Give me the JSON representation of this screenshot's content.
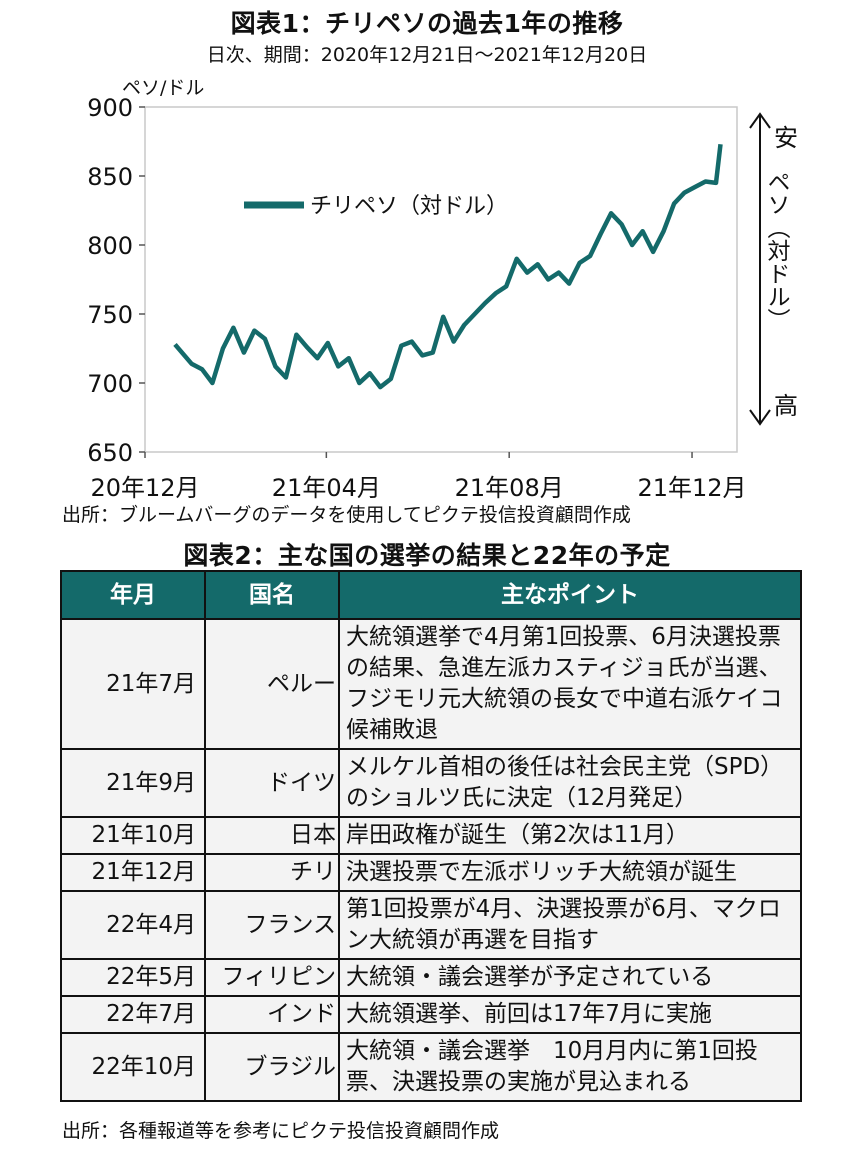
{
  "figure1": {
    "title": "図表1：チリペソの過去1年の推移",
    "subtitle": "日次、期間：2020年12月21日～2021年12月20日",
    "source": "出所：ブルームバーグのデータを使用してピクテ投信投資顧問作成"
  },
  "chart_data": {
    "type": "line",
    "ylabel": "ペソ/ドル",
    "ylim": [
      650,
      900
    ],
    "yticks": [
      "900",
      "850",
      "800",
      "750",
      "700",
      "650"
    ],
    "xticks": [
      "20年12月",
      "21年04月",
      "21年08月",
      "21年12月"
    ],
    "right_axis": {
      "top": "安",
      "middle": "ペソ（対ドル）",
      "bottom": "高"
    },
    "legend_position": "upper-left",
    "line_color": "#146a6a",
    "series": [
      {
        "name": "チリペソ（対ドル）",
        "x": [
          "2020-12-21",
          "2021-01-01",
          "2021-01-08",
          "2021-01-15",
          "2021-01-22",
          "2021-01-29",
          "2021-02-05",
          "2021-02-12",
          "2021-02-19",
          "2021-02-26",
          "2021-03-05",
          "2021-03-12",
          "2021-03-19",
          "2021-03-26",
          "2021-04-02",
          "2021-04-09",
          "2021-04-16",
          "2021-04-23",
          "2021-04-30",
          "2021-05-07",
          "2021-05-14",
          "2021-05-21",
          "2021-05-28",
          "2021-06-04",
          "2021-06-11",
          "2021-06-18",
          "2021-06-25",
          "2021-07-02",
          "2021-07-09",
          "2021-07-16",
          "2021-07-23",
          "2021-07-30",
          "2021-08-06",
          "2021-08-13",
          "2021-08-20",
          "2021-08-27",
          "2021-09-03",
          "2021-09-10",
          "2021-09-17",
          "2021-09-24",
          "2021-10-01",
          "2021-10-08",
          "2021-10-15",
          "2021-10-22",
          "2021-10-29",
          "2021-11-05",
          "2021-11-12",
          "2021-11-19",
          "2021-11-26",
          "2021-12-03",
          "2021-12-10",
          "2021-12-17",
          "2021-12-20"
        ],
        "values": [
          728,
          714,
          710,
          700,
          725,
          740,
          722,
          738,
          732,
          712,
          704,
          735,
          726,
          718,
          729,
          712,
          718,
          700,
          707,
          697,
          703,
          727,
          730,
          720,
          722,
          748,
          730,
          742,
          750,
          758,
          765,
          770,
          790,
          780,
          786,
          775,
          780,
          772,
          787,
          792,
          808,
          823,
          815,
          800,
          810,
          795,
          810,
          830,
          838,
          842,
          846,
          845,
          873
        ]
      }
    ]
  },
  "figure2": {
    "title": "図表2：主な国の選挙の結果と22年の予定",
    "headers": [
      "年月",
      "国名",
      "主なポイント"
    ],
    "rows": [
      {
        "ym": "21年7月",
        "country": "ペルー",
        "point": "大統領選挙で4月第1回投票、6月決選投票の結果、急進左派カスティジョ氏が当選、フジモリ元大統領の長女で中道右派ケイコ候補敗退"
      },
      {
        "ym": "21年9月",
        "country": "ドイツ",
        "point": "メルケル首相の後任は社会民主党（SPD）のショルツ氏に決定（12月発足）"
      },
      {
        "ym": "21年10月",
        "country": "日本",
        "point": "岸田政権が誕生（第2次は11月）"
      },
      {
        "ym": "21年12月",
        "country": "チリ",
        "point": "決選投票で左派ボリッチ大統領が誕生"
      },
      {
        "ym": "22年4月",
        "country": "フランス",
        "point": "第1回投票が4月、決選投票が6月、マクロン大統領が再選を目指す"
      },
      {
        "ym": "22年5月",
        "country": "フィリピン",
        "point": "大統領・議会選挙が予定されている"
      },
      {
        "ym": "22年7月",
        "country": "インド",
        "point": "大統領選挙、前回は17年7月に実施"
      },
      {
        "ym": "22年10月",
        "country": "ブラジル",
        "point": "大統領・議会選挙　10月月内に第1回投票、決選投票の実施が見込まれる"
      }
    ],
    "source": "出所：各種報道等を参考にピクテ投信投資顧問作成"
  }
}
